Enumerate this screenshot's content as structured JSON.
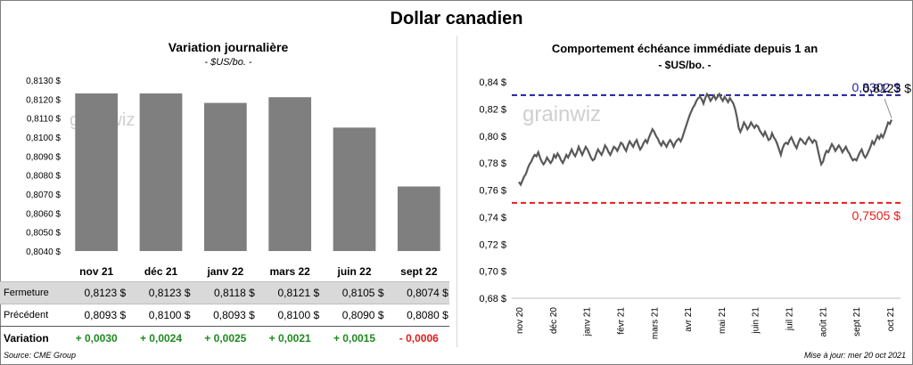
{
  "title": "Dollar canadien",
  "left": {
    "title": "Variation  journalière",
    "unit": "- $US/bo. -",
    "table": {
      "rows": [
        {
          "label": "Fermeture",
          "values": [
            "0,8123  $",
            "0,8123  $",
            "0,8118  $",
            "0,8121  $",
            "0,8105  $",
            "0,8074  $"
          ]
        },
        {
          "label": "Précédent",
          "values": [
            "0,8093  $",
            "0,8100  $",
            "0,8093  $",
            "0,8100  $",
            "0,8090  $",
            "0,8080  $"
          ]
        },
        {
          "label": "Variation",
          "values": [
            "+ 0,0030",
            "+ 0,0024",
            "+ 0,0025",
            "+ 0,0021",
            "+ 0,0015",
            "- 0,0006"
          ],
          "signs": [
            "pos",
            "pos",
            "pos",
            "pos",
            "pos",
            "neg"
          ]
        }
      ]
    }
  },
  "right": {
    "title": "Comportement échéance immédiate depuis 1 an",
    "unit": "- $US/bo. -"
  },
  "source": "Source: CME Group",
  "updated": "Mise à jour: mer 20 oct 2021",
  "watermark": "grainwiz",
  "chart_data": [
    {
      "type": "bar",
      "categories": [
        "nov 21",
        "déc 21",
        "janv 22",
        "mars 22",
        "juin 22",
        "sept 22"
      ],
      "values": [
        0.8123,
        0.8123,
        0.8118,
        0.8121,
        0.8105,
        0.8074
      ],
      "ylim": [
        0.804,
        0.813
      ],
      "yticks": [
        "0,8040 $",
        "0,8050 $",
        "0,8060 $",
        "0,8070 $",
        "0,8080 $",
        "0,8090 $",
        "0,8100 $",
        "0,8110 $",
        "0,8120 $",
        "0,8130 $"
      ],
      "color": "#7f7f7f",
      "grid": false
    },
    {
      "type": "line",
      "ylim": [
        0.68,
        0.84
      ],
      "yticks": [
        "0,68 $",
        "0,70 $",
        "0,72 $",
        "0,74 $",
        "0,76 $",
        "0,78 $",
        "0,80 $",
        "0,82 $",
        "0,84 $"
      ],
      "xticks": [
        "nov 20",
        "déc 20",
        "janv 21",
        "févr 21",
        "mars 21",
        "avr 21",
        "mai 21",
        "juin 21",
        "juil 21",
        "août 21",
        "sept 21",
        "oct 21"
      ],
      "series": [
        {
          "values": [
            0.766,
            0.764,
            0.767,
            0.77,
            0.772,
            0.776,
            0.779,
            0.781,
            0.784,
            0.786,
            0.785,
            0.788,
            0.784,
            0.781,
            0.779,
            0.781,
            0.784,
            0.782,
            0.78,
            0.782,
            0.786,
            0.784,
            0.787,
            0.785,
            0.782,
            0.78,
            0.783,
            0.786,
            0.784,
            0.787,
            0.79,
            0.787,
            0.785,
            0.788,
            0.792,
            0.789,
            0.786,
            0.789,
            0.792,
            0.79,
            0.787,
            0.784,
            0.782,
            0.783,
            0.787,
            0.79,
            0.788,
            0.786,
            0.789,
            0.793,
            0.791,
            0.788,
            0.786,
            0.789,
            0.792,
            0.791,
            0.789,
            0.792,
            0.795,
            0.794,
            0.791,
            0.789,
            0.793,
            0.796,
            0.794,
            0.792,
            0.795,
            0.797,
            0.793,
            0.79,
            0.792,
            0.795,
            0.797,
            0.795,
            0.799,
            0.802,
            0.805,
            0.803,
            0.8,
            0.798,
            0.795,
            0.793,
            0.796,
            0.794,
            0.792,
            0.795,
            0.797,
            0.795,
            0.792,
            0.795,
            0.797,
            0.798,
            0.796,
            0.799,
            0.803,
            0.807,
            0.811,
            0.815,
            0.818,
            0.821,
            0.823,
            0.826,
            0.828,
            0.829,
            0.827,
            0.824,
            0.828,
            0.831,
            0.829,
            0.826,
            0.828,
            0.83,
            0.827,
            0.829,
            0.831,
            0.828,
            0.826,
            0.829,
            0.827,
            0.825,
            0.828,
            0.826,
            0.824,
            0.82,
            0.814,
            0.806,
            0.803,
            0.806,
            0.81,
            0.808,
            0.805,
            0.807,
            0.81,
            0.808,
            0.806,
            0.808,
            0.807,
            0.804,
            0.802,
            0.8,
            0.803,
            0.8,
            0.797,
            0.798,
            0.802,
            0.799,
            0.797,
            0.794,
            0.79,
            0.786,
            0.791,
            0.794,
            0.795,
            0.794,
            0.797,
            0.799,
            0.796,
            0.793,
            0.791,
            0.795,
            0.798,
            0.797,
            0.795,
            0.794,
            0.797,
            0.799,
            0.797,
            0.795,
            0.797,
            0.796,
            0.79,
            0.784,
            0.779,
            0.781,
            0.786,
            0.789,
            0.788,
            0.791,
            0.794,
            0.792,
            0.789,
            0.791,
            0.793,
            0.791,
            0.788,
            0.79,
            0.792,
            0.789,
            0.787,
            0.784,
            0.782,
            0.783,
            0.782,
            0.785,
            0.788,
            0.79,
            0.786,
            0.784,
            0.786,
            0.789,
            0.792,
            0.796,
            0.794,
            0.797,
            0.8,
            0.798,
            0.801,
            0.799,
            0.802,
            0.806,
            0.81,
            0.809,
            0.812
          ]
        }
      ],
      "reference_lines": [
        {
          "value": 0.8302,
          "label": "0,8302 $",
          "color": "#1f1f9f"
        },
        {
          "value": 0.7505,
          "label": "0,7505 $",
          "color": "#e81c1c"
        }
      ],
      "last_value_label": "0,8123 $",
      "grid": false
    }
  ]
}
